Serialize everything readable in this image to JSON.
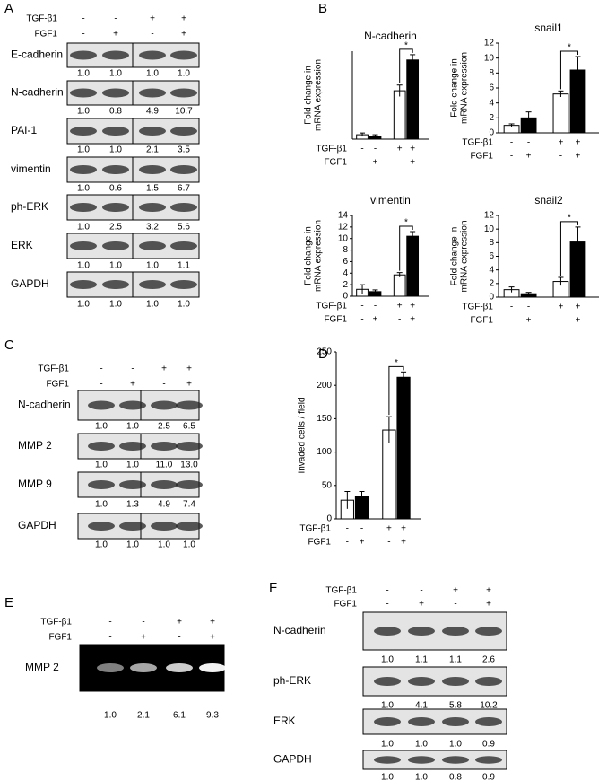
{
  "panels": {
    "A": {
      "label": "A",
      "treatments": [
        {
          "label": "TGF-β1",
          "signs": [
            "-",
            "-",
            "+",
            "+"
          ]
        },
        {
          "label": "FGF1",
          "signs": [
            "-",
            "+",
            "-",
            "+"
          ]
        }
      ],
      "blots": [
        {
          "name": "E-cadherin",
          "values": [
            "1.0",
            "1.0",
            "1.0",
            "1.0"
          ]
        },
        {
          "name": "N-cadherin",
          "values": [
            "1.0",
            "0.8",
            "4.9",
            "10.7"
          ]
        },
        {
          "name": "PAI-1",
          "values": [
            "1.0",
            "1.0",
            "2.1",
            "3.5"
          ]
        },
        {
          "name": "vimentin",
          "values": [
            "1.0",
            "0.6",
            "1.5",
            "6.7"
          ]
        },
        {
          "name": "ph-ERK",
          "values": [
            "1.0",
            "2.5",
            "3.2",
            "5.6"
          ]
        },
        {
          "name": "ERK",
          "values": [
            "1.0",
            "1.0",
            "1.0",
            "1.1"
          ]
        },
        {
          "name": "GAPDH",
          "values": [
            "1.0",
            "1.0",
            "1.0",
            "1.0"
          ]
        }
      ]
    },
    "B": {
      "label": "B"
    },
    "C": {
      "label": "C",
      "treatments": [
        {
          "label": "TGF-β1",
          "signs": [
            "-",
            "-",
            "+",
            "+"
          ]
        },
        {
          "label": "FGF1",
          "signs": [
            "-",
            "+",
            "-",
            "+"
          ]
        }
      ],
      "blots": [
        {
          "name": "N-cadherin",
          "values": [
            "1.0",
            "1.0",
            "2.5",
            "6.5"
          ]
        },
        {
          "name": "MMP 2",
          "values": [
            "1.0",
            "1.0",
            "11.0",
            "13.0"
          ]
        },
        {
          "name": "MMP 9",
          "values": [
            "1.0",
            "1.3",
            "4.9",
            "7.4"
          ]
        },
        {
          "name": "GAPDH",
          "values": [
            "1.0",
            "1.0",
            "1.0",
            "1.0"
          ]
        }
      ]
    },
    "D": {
      "label": "D"
    },
    "E": {
      "label": "E",
      "treatments": [
        {
          "label": "TGF-β1",
          "signs": [
            "-",
            "-",
            "+",
            "+"
          ]
        },
        {
          "label": "FGF1",
          "signs": [
            "-",
            "+",
            "-",
            "+"
          ]
        }
      ],
      "blots": [
        {
          "name": "MMP 2",
          "values": [
            "1.0",
            "2.1",
            "6.1",
            "9.3"
          ]
        }
      ]
    },
    "F": {
      "label": "F",
      "treatments": [
        {
          "label": "TGF-β1",
          "signs": [
            "-",
            "-",
            "+",
            "+"
          ]
        },
        {
          "label": "FGF1",
          "signs": [
            "-",
            "+",
            "-",
            "+"
          ]
        }
      ],
      "blots": [
        {
          "name": "N-cadherin",
          "values": [
            "1.0",
            "1.1",
            "1.1",
            "2.6"
          ]
        },
        {
          "name": "ph-ERK",
          "values": [
            "1.0",
            "4.1",
            "5.8",
            "10.2"
          ]
        },
        {
          "name": "ERK",
          "values": [
            "1.0",
            "1.0",
            "1.0",
            "0.9"
          ]
        },
        {
          "name": "GAPDH",
          "values": [
            "1.0",
            "1.0",
            "0.8",
            "0.9"
          ]
        }
      ]
    }
  },
  "chart_data": [
    {
      "type": "bar",
      "title": "N-cadherin",
      "y_label": [
        "Fold change in",
        "mRNA expression"
      ],
      "categories": [
        null,
        null,
        null,
        null
      ],
      "values": [
        1.0,
        0.7,
        11,
        18
      ],
      "errors": [
        0.4,
        0.3,
        1.3,
        1.2
      ],
      "colors": [
        "#ffffff",
        "#000000",
        "#ffffff",
        "#000000"
      ],
      "ylim": [
        0,
        20
      ],
      "annotation": "*",
      "treatments": [
        {
          "label": "TGF-β1",
          "signs": [
            "-",
            "-",
            "+",
            "+"
          ]
        },
        {
          "label": "FGF1",
          "signs": [
            "-",
            "+",
            "-",
            "+"
          ]
        }
      ]
    },
    {
      "type": "bar",
      "title": "snail1",
      "y_label": [
        "Fold change in",
        "mRNA expression"
      ],
      "categories": [
        null,
        null,
        null,
        null
      ],
      "values": [
        1.0,
        2.0,
        5.2,
        8.4
      ],
      "errors": [
        0.2,
        0.8,
        0.4,
        1.8
      ],
      "colors": [
        "#ffffff",
        "#000000",
        "#ffffff",
        "#000000"
      ],
      "ylim": [
        0,
        12
      ],
      "yticks": [
        0,
        2,
        4,
        6,
        8,
        10,
        12
      ],
      "annotation": "*",
      "treatments": [
        {
          "label": "TGF-β1",
          "signs": [
            "-",
            "-",
            "+",
            "+"
          ]
        },
        {
          "label": "FGF1",
          "signs": [
            "-",
            "+",
            "-",
            "+"
          ]
        }
      ]
    },
    {
      "type": "bar",
      "title": "vimentin",
      "y_label": [
        "Fold change in",
        "mRNA expression"
      ],
      "categories": [
        null,
        null,
        null,
        null
      ],
      "values": [
        1.2,
        0.8,
        3.7,
        10.4
      ],
      "errors": [
        0.8,
        0.3,
        0.4,
        0.8
      ],
      "colors": [
        "#ffffff",
        "#000000",
        "#ffffff",
        "#000000"
      ],
      "ylim": [
        0,
        14
      ],
      "yticks": [
        0,
        2,
        4,
        6,
        8,
        10,
        12,
        14
      ],
      "annotation": "*",
      "treatments": [
        {
          "label": "TGF-β1",
          "signs": [
            "-",
            "-",
            "+",
            "+"
          ]
        },
        {
          "label": "FGF1",
          "signs": [
            "-",
            "+",
            "-",
            "+"
          ]
        }
      ]
    },
    {
      "type": "bar",
      "title": "snail2",
      "y_label": [
        "Fold change in",
        "mRNA expression"
      ],
      "categories": [
        null,
        null,
        null,
        null
      ],
      "values": [
        1.1,
        0.5,
        2.3,
        8.1
      ],
      "errors": [
        0.4,
        0.2,
        0.6,
        2.2
      ],
      "colors": [
        "#ffffff",
        "#000000",
        "#ffffff",
        "#000000"
      ],
      "ylim": [
        0,
        12
      ],
      "yticks": [
        0,
        2,
        4,
        6,
        8,
        10,
        12
      ],
      "annotation": "*",
      "treatments": [
        {
          "label": "TGF-β1",
          "signs": [
            "-",
            "-",
            "+",
            "+"
          ]
        },
        {
          "label": "FGF1",
          "signs": [
            "-",
            "+",
            "-",
            "+"
          ]
        }
      ]
    },
    {
      "type": "bar",
      "y_label": [
        "Invaded cells / field"
      ],
      "categories": [
        null,
        null,
        null,
        null
      ],
      "values": [
        28,
        33,
        133,
        212
      ],
      "errors": [
        13,
        8,
        20,
        8
      ],
      "colors": [
        "#ffffff",
        "#000000",
        "#ffffff",
        "#000000"
      ],
      "ylim": [
        0,
        250
      ],
      "yticks": [
        0,
        50,
        100,
        150,
        200,
        250
      ],
      "annotation": "*",
      "treatments": [
        {
          "label": "TGF-β1",
          "signs": [
            "-",
            "-",
            "+",
            "+"
          ]
        },
        {
          "label": "FGF1",
          "signs": [
            "-",
            "+",
            "-",
            "+"
          ]
        }
      ]
    }
  ]
}
